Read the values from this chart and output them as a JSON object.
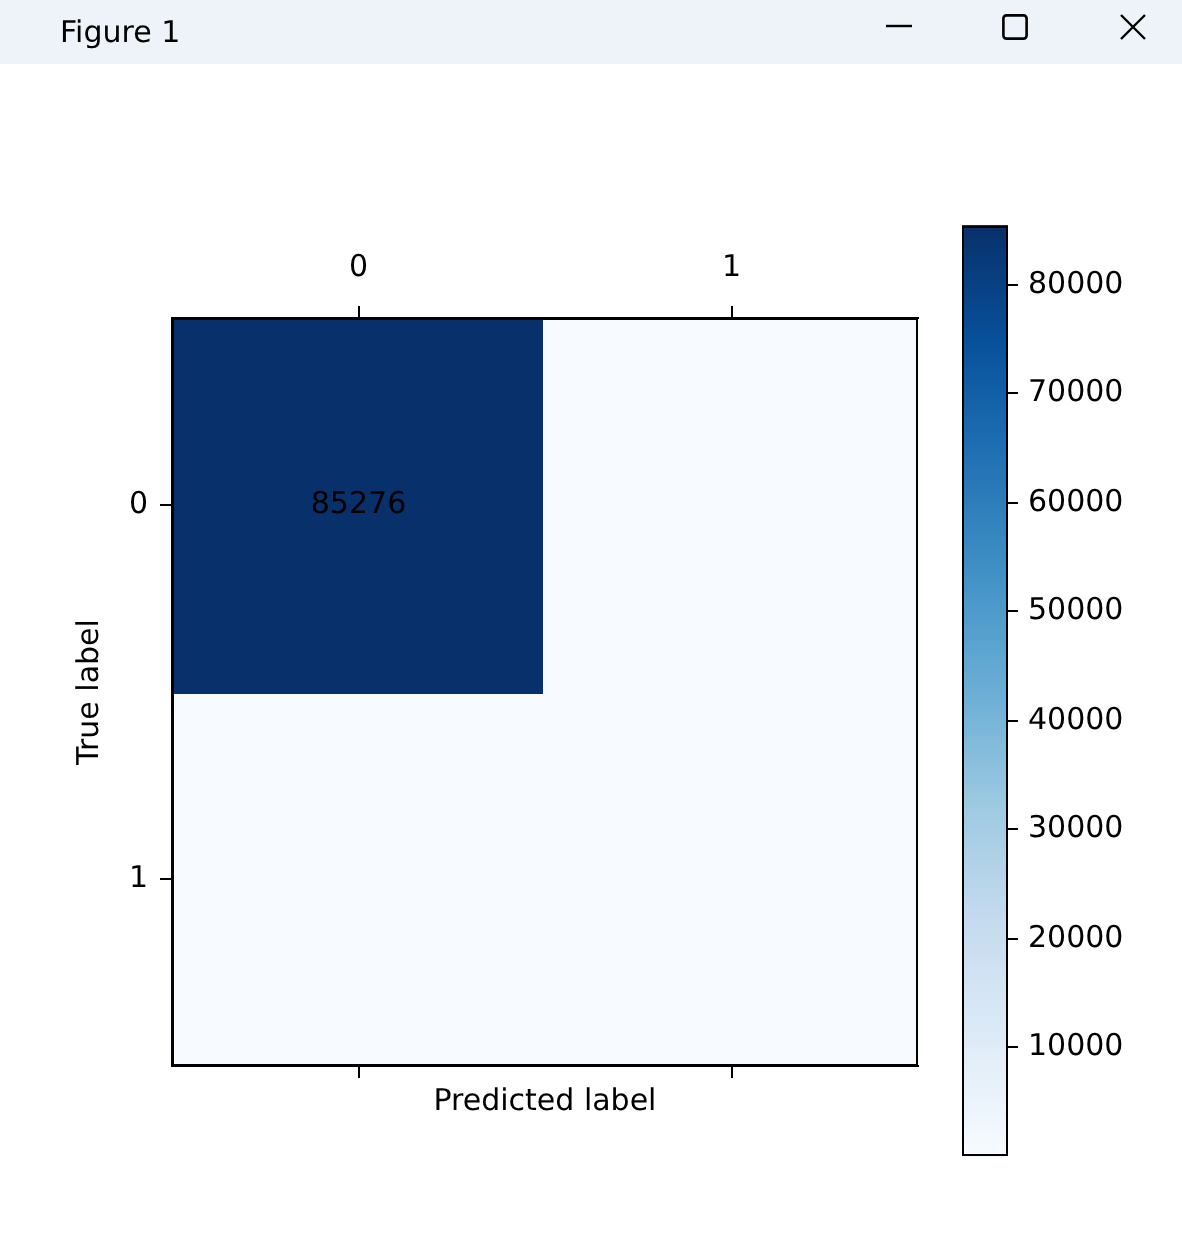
{
  "chart_data": {
    "type": "heatmap",
    "annotations": [
      "Figure 1"
    ],
    "xlabel": "Predicted label",
    "ylabel": "True label",
    "categories": [
      "0",
      "1"
    ],
    "y_categories": [
      "0",
      "1"
    ],
    "cells": [
      [
        85276,
        0
      ],
      [
        0,
        0
      ]
    ],
    "cell_labels": [
      [
        "85276",
        null
      ],
      [
        null,
        null
      ]
    ],
    "clim": [
      0,
      85276
    ],
    "cticks": [
      10000,
      20000,
      30000,
      40000,
      50000,
      60000,
      70000,
      80000
    ]
  }
}
